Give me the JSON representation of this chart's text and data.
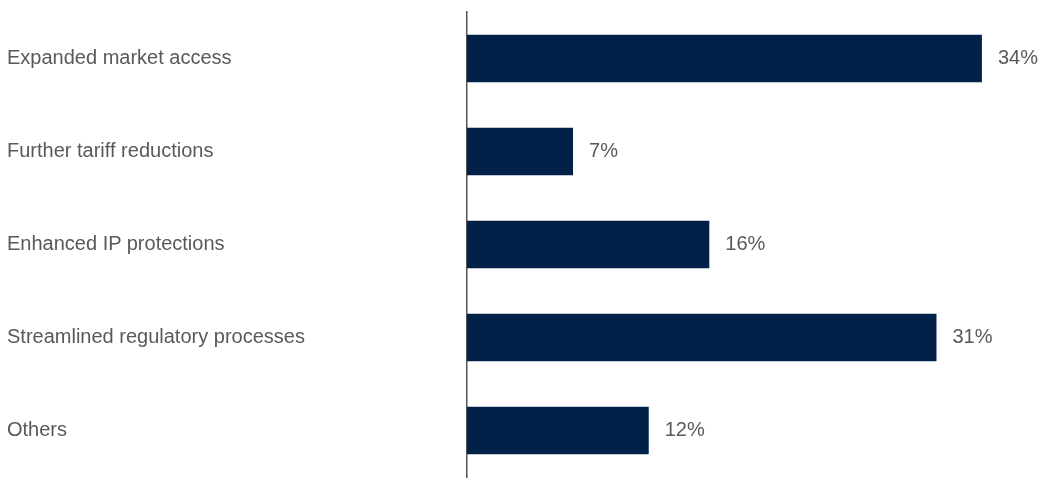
{
  "chart_data": {
    "type": "bar",
    "orientation": "horizontal",
    "categories": [
      "Expanded market access",
      "Further tariff reductions",
      "Enhanced IP protections",
      "Streamlined regulatory processes",
      "Others"
    ],
    "values": [
      34,
      7,
      16,
      31,
      12
    ],
    "color": "#012148",
    "value_labels": [
      "34%",
      "7%",
      "16%",
      "31%",
      "12%"
    ],
    "grid": false,
    "legend": false,
    "tick_labels": "y"
  }
}
